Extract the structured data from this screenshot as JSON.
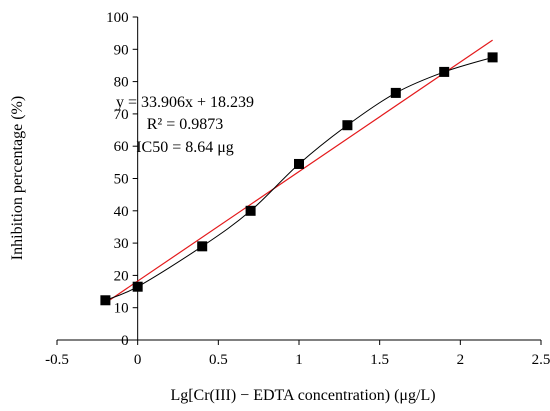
{
  "chart_data": {
    "type": "scatter",
    "xlabel": "Lg[Cr(III) − EDTA concentration) (μg/L)",
    "ylabel": "Inhibition percentage (%)",
    "xlim": [
      -0.5,
      2.5
    ],
    "ylim": [
      0,
      100
    ],
    "xticks": [
      "-0.5",
      "0",
      "0.5",
      "1",
      "1.5",
      "2",
      "2.5"
    ],
    "yticks": [
      "0",
      "10",
      "20",
      "30",
      "40",
      "50",
      "60",
      "70",
      "80",
      "90",
      "100"
    ],
    "grid": false,
    "series": [
      {
        "marker": "square",
        "color": "#000000",
        "x": [
          -0.2,
          0.0,
          0.4,
          0.7,
          1.0,
          1.3,
          1.6,
          1.9,
          2.2
        ],
        "y": [
          12.3,
          16.5,
          29.0,
          40.0,
          54.5,
          66.5,
          76.5,
          83.0,
          87.5
        ],
        "smooth_line_color": "#000000"
      }
    ],
    "trendline": {
      "slope": 33.906,
      "intercept": 18.239,
      "x_range": [
        -0.2,
        2.2
      ],
      "color": "#e41a1c"
    },
    "annotations": [
      "y = 33.906x + 18.239",
      "R² = 0.9873",
      "IC50 = 8.64 μg"
    ]
  }
}
